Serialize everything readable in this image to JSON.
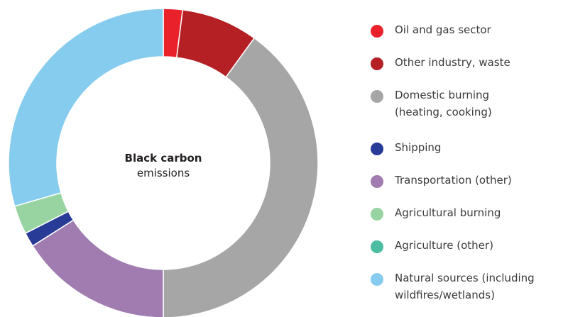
{
  "chart_data": {
    "type": "pie",
    "title": "",
    "center_label": {
      "title": "Black carbon",
      "subtitle": "emissions"
    },
    "legend_position": "right",
    "slices": [
      {
        "label": "Oil and gas sector",
        "value": 2,
        "color": "#e8212b"
      },
      {
        "label": "Other industry, waste",
        "value": 8,
        "color": "#b52025"
      },
      {
        "label": "Domestic burning\n(heating, cooking)",
        "value": 40,
        "color": "#a6a6a6"
      },
      {
        "label": "Transportation (other)",
        "value": 16,
        "color": "#a07cb0"
      },
      {
        "label": "Shipping",
        "value": 1.5,
        "color": "#283b97"
      },
      {
        "label": "Agricultural burning",
        "value": 3,
        "color": "#98d4a2"
      },
      {
        "label": "Agriculture (other)",
        "value": 0,
        "color": "#4dbda1"
      },
      {
        "label": "Natural sources (including\nwildfires/wetlands)",
        "value": 29.5,
        "color": "#86ccee"
      }
    ],
    "legend_order": [
      "Oil and gas sector",
      "Other industry, waste",
      "Domestic burning\n(heating, cooking)",
      "Shipping",
      "Transportation (other)",
      "Agricultural burning",
      "Agriculture (other)",
      "Natural sources (including\nwildfires/wetlands)"
    ]
  }
}
